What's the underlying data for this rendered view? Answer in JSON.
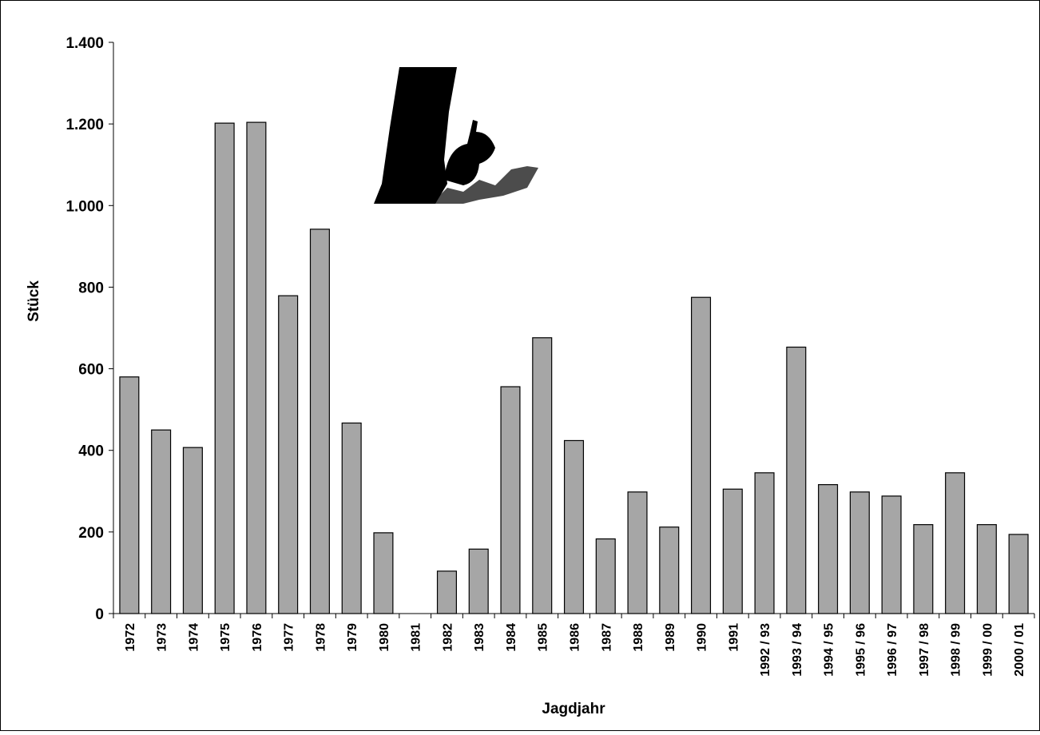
{
  "chart_data": {
    "type": "bar",
    "x_label": "Jagdjahr",
    "y_label": "Stück",
    "categories": [
      "1972",
      "1973",
      "1974",
      "1975",
      "1976",
      "1977",
      "1978",
      "1979",
      "1980",
      "1981",
      "1982",
      "1983",
      "1984",
      "1985",
      "1986",
      "1987",
      "1988",
      "1989",
      "1990",
      "1991",
      "1992 / 93",
      "1993 / 94",
      "1994 / 95",
      "1995 / 96",
      "1996 / 97",
      "1997 / 98",
      "1998 / 99",
      "1999 / 00",
      "2000 / 01"
    ],
    "values": [
      580,
      450,
      407,
      1202,
      1204,
      779,
      942,
      467,
      198,
      null,
      104,
      158,
      556,
      676,
      424,
      183,
      298,
      212,
      775,
      305,
      345,
      653,
      316,
      298,
      288,
      218,
      345,
      218,
      194
    ],
    "color": "#a6a6a6",
    "ylim": [
      0,
      1400
    ],
    "yticks": [
      0,
      200,
      400,
      600,
      800,
      {
        "value": 1000,
        "label": "1.000"
      },
      {
        "value": 1200,
        "label": "1.200"
      },
      {
        "value": 1400,
        "label": "1.400"
      }
    ]
  }
}
